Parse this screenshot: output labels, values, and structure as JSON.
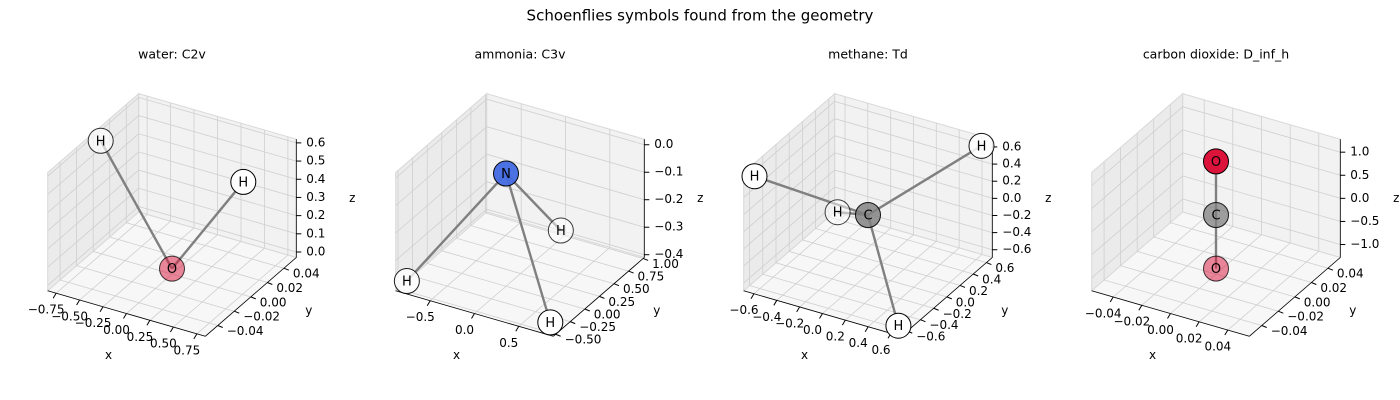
{
  "title": "Schoenflies symbols found from the geometry",
  "chart_data": [
    {
      "type": "scatter3d",
      "title": "water: C2v",
      "xlabel": "x",
      "ylabel": "y",
      "zlabel": "z",
      "atoms": {
        "labels": [
          "O",
          "H",
          "H"
        ],
        "colors": [
          "#dc143c",
          "#ffffff",
          "#ffffff"
        ],
        "x": [
          0,
          -0.76,
          0.76
        ],
        "y": [
          0,
          0,
          0
        ],
        "z": [
          0,
          0.59,
          0.59
        ]
      },
      "xlim": [
        -0.84,
        0.84
      ],
      "ylim": [
        -0.055,
        0.055
      ],
      "zlim": [
        -0.03,
        0.62
      ],
      "xticks": [
        {
          "value": -0.75,
          "label": "−0.75"
        },
        {
          "value": -0.5,
          "label": "−0.50"
        },
        {
          "value": -0.25,
          "label": "−0.25"
        },
        {
          "value": 0,
          "label": "0.00"
        },
        0.25,
        {
          "value": 0.5,
          "label": "0.50"
        },
        0.75
      ],
      "yticks": [
        {
          "value": -0.04,
          "label": "−0.04"
        },
        {
          "value": -0.02,
          "label": "−0.02"
        },
        {
          "value": 0,
          "label": "0.00"
        },
        0.02,
        0.04
      ],
      "zticks": [
        {
          "value": 0,
          "label": "0.0"
        },
        0.1,
        0.2,
        0.3,
        0.4,
        0.5,
        0.6
      ]
    },
    {
      "type": "scatter3d",
      "title": "ammonia: C3v",
      "xlabel": "x",
      "ylabel": "y",
      "zlabel": "z",
      "atoms": {
        "labels": [
          "N",
          "H",
          "H",
          "H"
        ],
        "colors": [
          "#4169e1",
          "#ffffff",
          "#ffffff",
          "#ffffff"
        ],
        "x": [
          0,
          -0.81,
          0.81,
          0
        ],
        "y": [
          0,
          -0.47,
          -0.47,
          0.94
        ],
        "z": [
          0,
          -0.38,
          -0.38,
          -0.38
        ]
      },
      "xlim": [
        -0.89,
        0.89
      ],
      "ylim": [
        -0.54,
        1.02
      ],
      "zlim": [
        -0.41,
        0.02
      ],
      "xticks": [
        {
          "value": -0.5,
          "label": "−0.5"
        },
        {
          "value": 0,
          "label": "0.0"
        },
        0.5
      ],
      "yticks": [
        {
          "value": -0.5,
          "label": "−0.50"
        },
        {
          "value": -0.25,
          "label": "−0.25"
        },
        {
          "value": 0,
          "label": "0.00"
        },
        0.25,
        {
          "value": 0.5,
          "label": "0.50"
        },
        0.75,
        {
          "value": 1,
          "label": "1.00"
        }
      ],
      "zticks": [
        {
          "value": -0.4,
          "label": "−0.4"
        },
        {
          "value": -0.3,
          "label": "−0.3"
        },
        {
          "value": -0.2,
          "label": "−0.2"
        },
        {
          "value": -0.1,
          "label": "−0.1"
        },
        {
          "value": 0,
          "label": "0.0"
        }
      ]
    },
    {
      "type": "scatter3d",
      "title": "methane: Td",
      "xlabel": "x",
      "ylabel": "y",
      "zlabel": "z",
      "atoms": {
        "labels": [
          "C",
          "H",
          "H",
          "H",
          "H"
        ],
        "colors": [
          "#808080",
          "#ffffff",
          "#ffffff",
          "#ffffff",
          "#ffffff"
        ],
        "x": [
          0,
          0.63,
          -0.63,
          -0.63,
          0.63
        ],
        "y": [
          0,
          0.63,
          -0.63,
          0.63,
          -0.63
        ],
        "z": [
          0,
          0.63,
          0.63,
          -0.63,
          -0.63
        ]
      },
      "xlim": [
        -0.69,
        0.69
      ],
      "ylim": [
        -0.69,
        0.69
      ],
      "zlim": [
        -0.69,
        0.69
      ],
      "xticks": [
        {
          "value": -0.6,
          "label": "−0.6"
        },
        {
          "value": -0.4,
          "label": "−0.4"
        },
        {
          "value": -0.2,
          "label": "−0.2"
        },
        {
          "value": 0,
          "label": "0.0"
        },
        0.2,
        0.4,
        0.6
      ],
      "yticks": [
        {
          "value": -0.6,
          "label": "−0.6"
        },
        {
          "value": -0.4,
          "label": "−0.4"
        },
        {
          "value": -0.2,
          "label": "−0.2"
        },
        {
          "value": 0,
          "label": "0.0"
        },
        0.2,
        0.4,
        0.6
      ],
      "zticks": [
        {
          "value": -0.6,
          "label": "−0.6"
        },
        {
          "value": -0.4,
          "label": "−0.4"
        },
        {
          "value": -0.2,
          "label": "−0.2"
        },
        {
          "value": 0,
          "label": "0.0"
        },
        0.2,
        0.4,
        0.6
      ]
    },
    {
      "type": "scatter3d",
      "title": "carbon dioxide: D_inf_h",
      "xlabel": "x",
      "ylabel": "y",
      "zlabel": "z",
      "atoms": {
        "labels": [
          "C",
          "O",
          "O"
        ],
        "colors": [
          "#808080",
          "#dc143c",
          "#dc143c"
        ],
        "x": [
          0,
          0,
          0
        ],
        "y": [
          0,
          0,
          0
        ],
        "z": [
          0,
          1.16,
          -1.16
        ]
      },
      "xlim": [
        -0.055,
        0.055
      ],
      "ylim": [
        -0.055,
        0.055
      ],
      "zlim": [
        -1.28,
        1.28
      ],
      "xticks": [
        {
          "value": -0.04,
          "label": "−0.04"
        },
        {
          "value": -0.02,
          "label": "−0.02"
        },
        {
          "value": 0,
          "label": "0.00"
        },
        0.02,
        0.04
      ],
      "yticks": [
        {
          "value": -0.04,
          "label": "−0.04"
        },
        {
          "value": -0.02,
          "label": "−0.02"
        },
        {
          "value": 0,
          "label": "0.00"
        },
        0.02,
        0.04
      ],
      "zticks": [
        {
          "value": -1,
          "label": "−1.0"
        },
        {
          "value": -0.5,
          "label": "−0.5"
        },
        {
          "value": 0,
          "label": "0.0"
        },
        0.5,
        {
          "value": 1,
          "label": "1.0"
        }
      ]
    }
  ]
}
